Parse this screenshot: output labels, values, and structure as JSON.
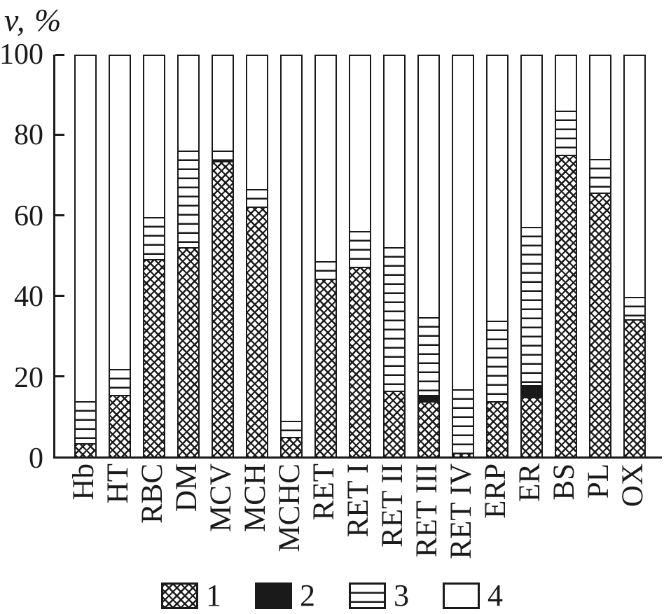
{
  "colors": {
    "ink": "#1a1a1a",
    "background": "#ffffff"
  },
  "chart_data": {
    "type": "bar",
    "stacked": true,
    "orientation": "vertical",
    "title": "",
    "ylabel": "v, %",
    "xlabel": "",
    "ylim": [
      0,
      100
    ],
    "yticks": [
      0,
      20,
      40,
      60,
      80,
      100
    ],
    "grid": false,
    "legend_position": "bottom",
    "categories": [
      "Hb",
      "HT",
      "RBC",
      "DM",
      "MCV",
      "MCH",
      "MCHC",
      "RET",
      "RET I",
      "RET II",
      "RET III",
      "RET IV",
      "ERP",
      "ER",
      "BS",
      "PL",
      "OX"
    ],
    "series": [
      {
        "name": "1",
        "pattern": "crosshatch",
        "values": [
          3,
          15,
          49,
          52,
          73.5,
          62,
          4.5,
          44,
          47,
          16,
          13.5,
          0.5,
          13.5,
          14.5,
          75,
          65.5,
          34
        ]
      },
      {
        "name": "2",
        "pattern": "solid",
        "values": [
          0,
          0,
          0,
          0,
          0,
          0,
          0,
          0,
          0,
          0,
          1.5,
          0,
          0,
          3,
          0,
          0,
          0
        ]
      },
      {
        "name": "3",
        "pattern": "hlines",
        "values": [
          10.5,
          6.5,
          10.5,
          24,
          2.5,
          4.5,
          4,
          4.5,
          9,
          36,
          19.5,
          16,
          20,
          39.5,
          11,
          8.5,
          5.5
        ]
      },
      {
        "name": "4",
        "pattern": "plain",
        "values": [
          86.5,
          78.5,
          40.5,
          24,
          24,
          33.5,
          91.5,
          51.5,
          44,
          48,
          65.5,
          83.5,
          66.5,
          43,
          14,
          26,
          60.5
        ]
      }
    ],
    "legend": [
      {
        "label": "1",
        "pattern": "crosshatch"
      },
      {
        "label": "2",
        "pattern": "solid"
      },
      {
        "label": "3",
        "pattern": "hlines"
      },
      {
        "label": "4",
        "pattern": "plain"
      }
    ]
  }
}
